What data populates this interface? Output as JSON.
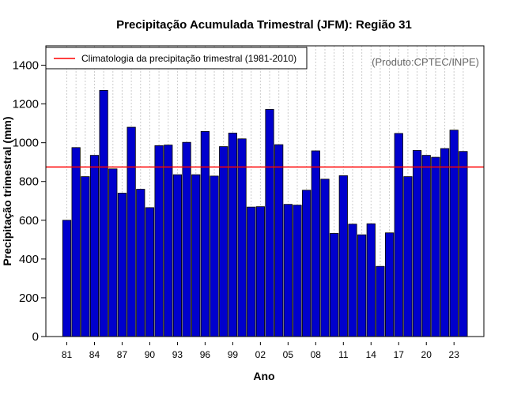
{
  "chart_data": {
    "type": "bar",
    "title": "Precipitação Acumulada Trimestral (JFM): Região 31",
    "xlabel": "Ano",
    "ylabel": "Precipitação trimestral (mm)",
    "credit": "(Produto:CPTEC/INPE)",
    "legend": {
      "label": "Climatologia da precipitação trimestral (1981-2010)",
      "position": "top-left"
    },
    "ylim": [
      0,
      1500
    ],
    "yticks": [
      0,
      200,
      400,
      600,
      800,
      1000,
      1200,
      1400
    ],
    "xticks": [
      "81",
      "84",
      "87",
      "90",
      "93",
      "96",
      "99",
      "02",
      "05",
      "08",
      "11",
      "14",
      "17",
      "20",
      "23"
    ],
    "categories": [
      "1981",
      "1982",
      "1983",
      "1984",
      "1985",
      "1986",
      "1987",
      "1988",
      "1989",
      "1990",
      "1991",
      "1992",
      "1993",
      "1994",
      "1995",
      "1996",
      "1997",
      "1998",
      "1999",
      "2000",
      "2001",
      "2002",
      "2003",
      "2004",
      "2005",
      "2006",
      "2007",
      "2008",
      "2009",
      "2010",
      "2011",
      "2012",
      "2013",
      "2014",
      "2015",
      "2016",
      "2017",
      "2018",
      "2019",
      "2020",
      "2021",
      "2022",
      "2023",
      "2024"
    ],
    "values": [
      600,
      975,
      825,
      935,
      1270,
      865,
      740,
      1080,
      760,
      665,
      985,
      988,
      835,
      1002,
      835,
      1058,
      828,
      980,
      1050,
      1020,
      668,
      670,
      1172,
      990,
      682,
      678,
      755,
      958,
      812,
      532,
      830,
      580,
      525,
      582,
      362,
      535,
      1048,
      825,
      960,
      935,
      925,
      970,
      1065,
      955
    ],
    "climatology": 875,
    "grid": "vertical dotted",
    "colors": {
      "bar_fill": "#0000cd",
      "bar_edge": "#000000",
      "climatology_line": "#ff0000",
      "grid": "#cccccc"
    }
  }
}
